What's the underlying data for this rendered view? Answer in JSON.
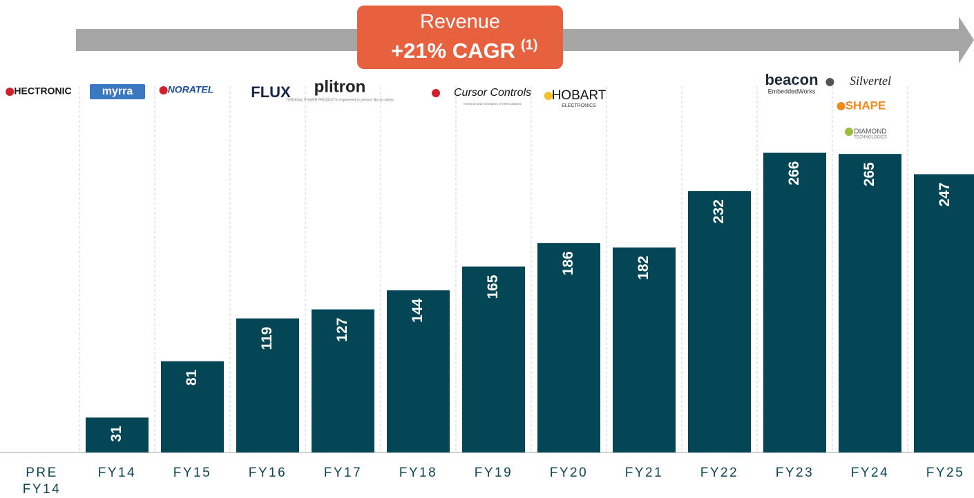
{
  "chart_data": {
    "type": "bar",
    "title": "Revenue",
    "annotation": {
      "text": "+21% CAGR",
      "footnote": "(1)"
    },
    "categories": [
      "PRE FY14",
      "FY14",
      "FY15",
      "FY16",
      "FY17",
      "FY18",
      "FY19",
      "FY20",
      "FY21",
      "FY22",
      "FY23",
      "FY24",
      "FY25"
    ],
    "values": [
      null,
      31,
      81,
      119,
      127,
      144,
      165,
      186,
      182,
      232,
      266,
      265,
      247
    ],
    "color": "#054656",
    "ylim": [
      0,
      300
    ],
    "logos": [
      {
        "name": "HECTRONIC"
      },
      {
        "name": "myrra"
      },
      {
        "name": "NORATEL"
      },
      {
        "name": "FLUX"
      },
      {
        "name": "plitron",
        "tagline": "TOROIDAL POWER PRODUCTS engineered to perform like no others"
      },
      {
        "name": "Cursor Controls",
        "tagline": "Inventors and Innovators of HMI Solutions"
      },
      {
        "name": "HOBART",
        "tagline": "ELECTRONICS"
      },
      {
        "name": "beacon",
        "tagline": "EmbeddedWorks"
      },
      {
        "name": "Silvertel"
      },
      {
        "name": "SHAPE"
      },
      {
        "name": "DIAMOND",
        "tagline": "TECHNOLOGIES"
      }
    ]
  }
}
